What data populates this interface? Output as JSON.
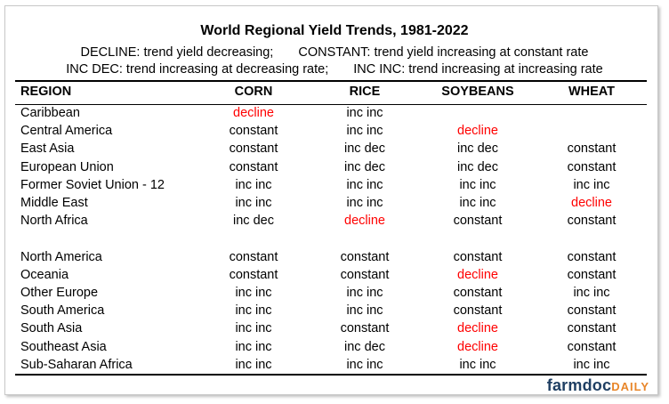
{
  "title": "World Regional Yield Trends, 1981-2022",
  "legend": {
    "line1": [
      "DECLINE: trend yield decreasing;",
      "CONSTANT: trend yield increasing at constant rate"
    ],
    "line2": [
      "INC DEC: trend increasing at decreasing rate;",
      "INC INC: trend increasing at increasing rate"
    ]
  },
  "columns": [
    "REGION",
    "CORN",
    "RICE",
    "SOYBEANS",
    "WHEAT"
  ],
  "rows": [
    [
      "Caribbean",
      "decline",
      "inc inc",
      "",
      ""
    ],
    [
      "Central America",
      "constant",
      "inc inc",
      "decline",
      ""
    ],
    [
      "East Asia",
      "constant",
      "inc dec",
      "inc dec",
      "constant"
    ],
    [
      "European Union",
      "constant",
      "inc dec",
      "inc dec",
      "constant"
    ],
    [
      "Former Soviet Union - 12",
      "inc inc",
      "inc inc",
      "inc inc",
      "inc inc"
    ],
    [
      "Middle East",
      "inc inc",
      "inc inc",
      "inc inc",
      "decline"
    ],
    [
      "North Africa",
      "inc dec",
      "decline",
      "constant",
      "constant"
    ],
    [
      "North America",
      "constant",
      "constant",
      "constant",
      "constant"
    ],
    [
      "Oceania",
      "constant",
      "constant",
      "decline",
      "constant"
    ],
    [
      "Other Europe",
      "inc inc",
      "inc inc",
      "constant",
      "inc inc"
    ],
    [
      "South America",
      "inc inc",
      "inc inc",
      "constant",
      "constant"
    ],
    [
      "South Asia",
      "inc inc",
      "constant",
      "decline",
      "constant"
    ],
    [
      "Southeast Asia",
      "inc inc",
      "inc dec",
      "decline",
      "constant"
    ],
    [
      "Sub-Saharan Africa",
      "inc inc",
      "inc inc",
      "inc inc",
      "inc inc"
    ]
  ],
  "colors": {
    "decline": "#ff0000",
    "text": "#000000",
    "logo_primary": "#1f3f63",
    "logo_accent": "#e8862a"
  },
  "logo": {
    "primary": "farmdoc",
    "accent": "DAILY"
  }
}
